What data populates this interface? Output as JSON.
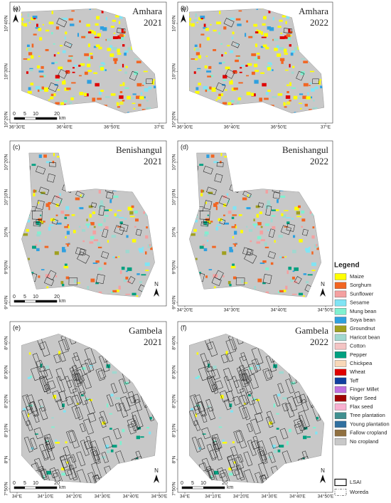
{
  "north_label": "N",
  "panels": [
    {
      "label": "(a)",
      "region": "Amhara",
      "year": "2021",
      "shape": "amhara",
      "lat_labels": [
        "10°40'N",
        "10°30'N",
        "10°20'N"
      ],
      "lon_labels": [
        "36°30'E",
        "36°40'E",
        "36°50'E",
        "37°E"
      ],
      "scale": [
        "0",
        "5",
        "10",
        "20"
      ],
      "scale_unit": "km"
    },
    {
      "label": "(b)",
      "region": "Amhara",
      "year": "2022",
      "shape": "amhara",
      "lat_labels": [
        "10°40'N",
        "10°30'N",
        "10°20'N"
      ],
      "lon_labels": [
        "36°30'E",
        "36°40'E",
        "36°50'E",
        "37°E"
      ]
    },
    {
      "label": "(c)",
      "region": "Benishangul",
      "year": "2021",
      "shape": "benishangul",
      "lat_labels": [
        "10°20'N",
        "10°10'N",
        "10°N",
        "9°50'N",
        "9°40'N"
      ],
      "scale": [
        "0",
        "5",
        "10",
        "20"
      ],
      "scale_unit": "km"
    },
    {
      "label": "(d)",
      "region": "Benishangul",
      "year": "2022",
      "shape": "benishangul",
      "lat_labels": [
        "10°20'N",
        "10°10'N",
        "10°N",
        "9°50'N",
        "9°40'N"
      ],
      "lon_labels": [
        "34°20'E",
        "34°30'E",
        "34°40'E",
        "34°50'E"
      ]
    },
    {
      "label": "(e)",
      "region": "Gambela",
      "year": "2021",
      "shape": "gambela",
      "lat_labels": [
        "8°40'N",
        "8°30'N",
        "8°20'N",
        "8°10'N",
        "8°N",
        "7°50'N"
      ],
      "lon_labels": [
        "34°E",
        "34°10'E",
        "34°20'E",
        "34°30'E",
        "34°40'E",
        "34°50'E"
      ],
      "scale": [
        "0",
        "5",
        "10",
        "20"
      ],
      "scale_unit": "km"
    },
    {
      "label": "(f)",
      "region": "Gambela",
      "year": "2022",
      "shape": "gambela",
      "lat_labels": [
        "8°40'N",
        "8°30'N",
        "8°20'N",
        "8°10'N",
        "8°N",
        "7°50'N"
      ],
      "lon_labels": [
        "34°E",
        "34°10'E",
        "34°20'E",
        "34°30'E",
        "34°40'E",
        "34°50'E"
      ],
      "scale": [
        "0",
        "5",
        "10",
        "20"
      ],
      "scale_unit": "km"
    }
  ],
  "legend": {
    "title": "Legend",
    "items": [
      {
        "label": "Maize",
        "color": "#ffff00"
      },
      {
        "label": "Sorghum",
        "color": "#f26522"
      },
      {
        "label": "Sunflower",
        "color": "#f4a0a0"
      },
      {
        "label": "Sesame",
        "color": "#80e4f4"
      },
      {
        "label": "Mung bean",
        "color": "#80f0d0"
      },
      {
        "label": "Soya bean",
        "color": "#2ea0e0"
      },
      {
        "label": "Groundnut",
        "color": "#a0a020"
      },
      {
        "label": "Haricot bean",
        "color": "#a0d8d0"
      },
      {
        "label": "Cotton",
        "color": "#f4c4c4"
      },
      {
        "label": "Pepper",
        "color": "#00a080"
      },
      {
        "label": "Chickpea",
        "color": "#f8d8b8"
      },
      {
        "label": "Wheat",
        "color": "#e00000"
      },
      {
        "label": "Teff",
        "color": "#1040a0"
      },
      {
        "label": "Finger Millet",
        "color": "#c070e0"
      },
      {
        "label": "Niger Seed",
        "color": "#a00000"
      },
      {
        "label": "Flax seed",
        "color": "#f8b0d0"
      },
      {
        "label": "Tree plantation",
        "color": "#409090"
      },
      {
        "label": "Young plantation",
        "color": "#3070a0"
      },
      {
        "label": "Fallow cropland",
        "color": "#907040"
      },
      {
        "label": "No cropland",
        "color": "#c8c8c8"
      }
    ],
    "boundaries": [
      "LSAI",
      "Woreda"
    ]
  }
}
